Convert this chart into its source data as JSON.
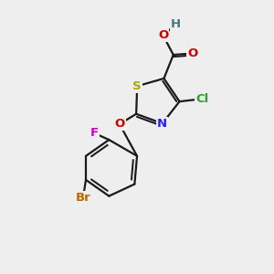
{
  "background_color": "#eeeeee",
  "bond_color": "#1a1a1a",
  "bond_width": 1.6,
  "atom_colors": {
    "S": "#aaaa00",
    "N": "#2222ff",
    "O": "#cc0000",
    "Cl": "#22aa22",
    "F": "#cc00cc",
    "Br": "#bb6600",
    "H": "#447777",
    "C": "#1a1a1a"
  },
  "font_size": 9.5
}
